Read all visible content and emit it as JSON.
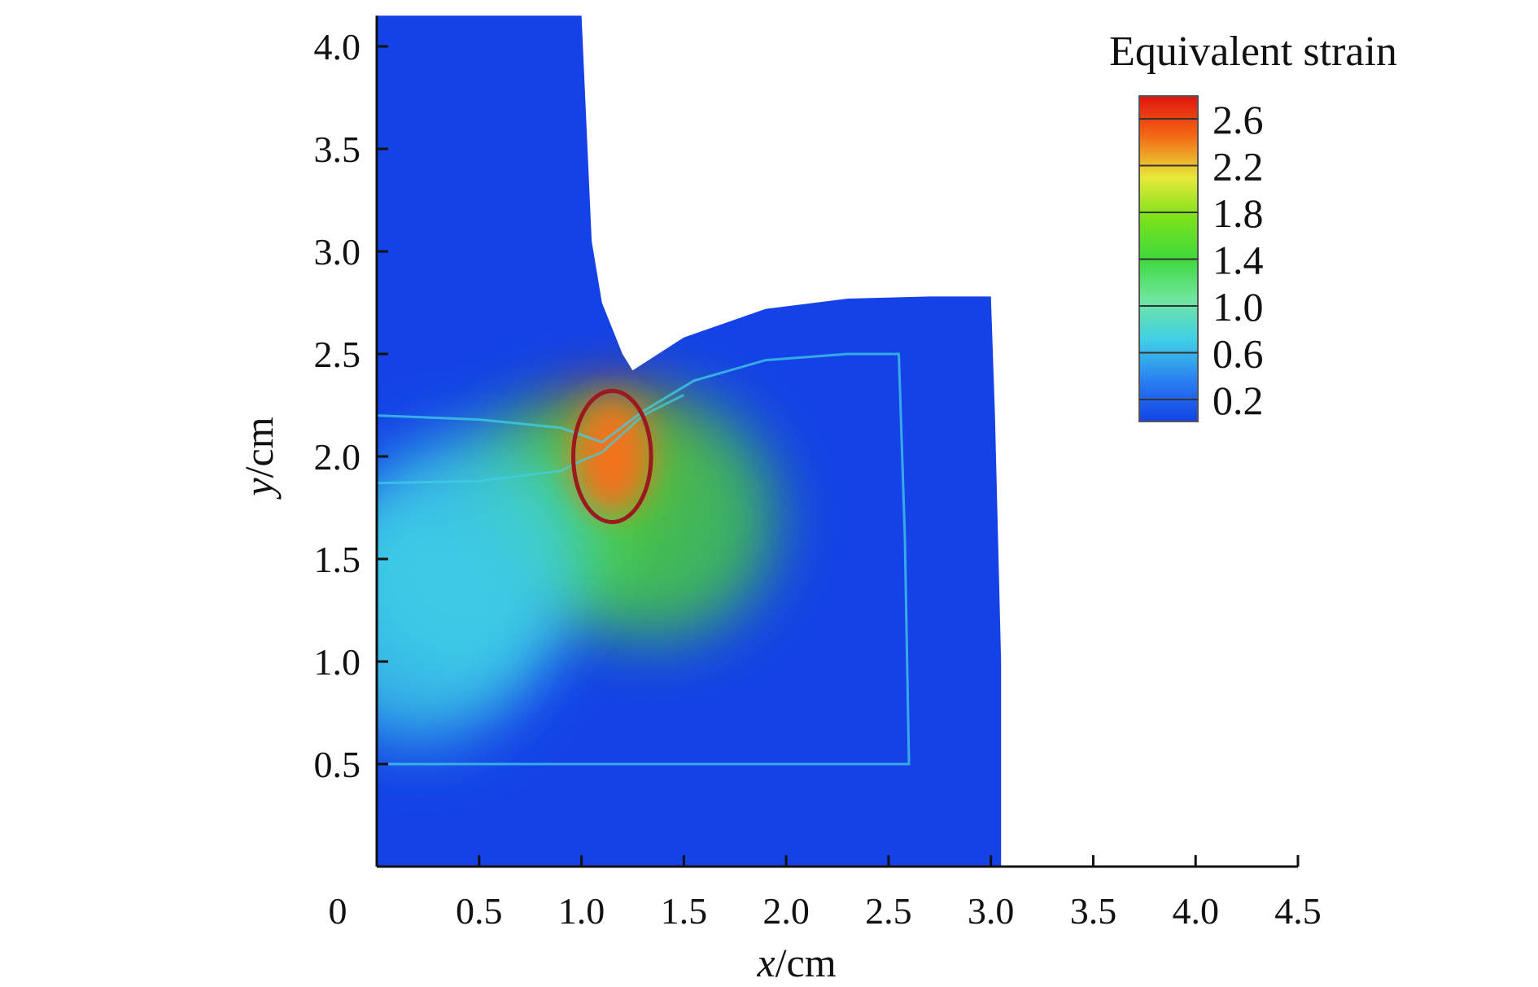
{
  "chart_data": {
    "type": "heatmap",
    "title": "",
    "xlabel": "x/cm",
    "ylabel": "y/cm",
    "xlabel_italic": "x",
    "xlabel_unit": "/cm",
    "ylabel_italic": "y",
    "ylabel_unit": "/cm",
    "xlim": [
      0,
      4.5
    ],
    "ylim": [
      0,
      4.15
    ],
    "xticks": [
      "0",
      "0.5",
      "1.0",
      "1.5",
      "2.0",
      "2.5",
      "3.0",
      "3.5",
      "4.0",
      "4.5"
    ],
    "xtick_values": [
      0,
      0.5,
      1.0,
      1.5,
      2.0,
      2.5,
      3.0,
      3.5,
      4.0,
      4.5
    ],
    "yticks": [
      "0.5",
      "1.0",
      "1.5",
      "2.0",
      "2.5",
      "3.0",
      "3.5",
      "4.0"
    ],
    "ytick_values": [
      0.5,
      1.0,
      1.5,
      2.0,
      2.5,
      3.0,
      3.5,
      4.0
    ],
    "grid": false,
    "colorbar": {
      "title": "Equivalent strain",
      "labels": [
        "2.6",
        "2.2",
        "1.8",
        "1.4",
        "1.0",
        "0.6",
        "0.2"
      ],
      "colors": [
        "#e0140e",
        "#f36a16",
        "#e8e83a",
        "#7ae21a",
        "#3fd83c",
        "#70e6a0",
        "#40cfe6",
        "#2a7ff0",
        "#1442e6"
      ],
      "placement": "top-right"
    },
    "colors": {
      "low": "#1442e6",
      "medium_low": "#40cfe6",
      "medium": "#4ad23c",
      "high": "#f0731c",
      "peak": "#e0140e",
      "highlight_ellipse": "#9a1a20"
    },
    "regions": {
      "punch_outline": [
        [
          0,
          4.15
        ],
        [
          1.0,
          4.15
        ],
        [
          1.05,
          3.05
        ],
        [
          1.1,
          2.75
        ],
        [
          1.2,
          2.5
        ],
        [
          1.25,
          2.42
        ],
        [
          1.5,
          2.58
        ],
        [
          1.9,
          2.72
        ],
        [
          2.3,
          2.77
        ],
        [
          2.7,
          2.78
        ],
        [
          2.95,
          2.78
        ],
        [
          3.0,
          2.78
        ],
        [
          3.02,
          2.2
        ],
        [
          3.05,
          1.0
        ],
        [
          3.05,
          0
        ],
        [
          0,
          0
        ]
      ],
      "inner_interface": [
        [
          0,
          2.2
        ],
        [
          0.5,
          2.18
        ],
        [
          0.9,
          2.14
        ],
        [
          1.1,
          2.07
        ],
        [
          1.3,
          2.22
        ],
        [
          1.55,
          2.37
        ],
        [
          1.9,
          2.47
        ],
        [
          2.3,
          2.5
        ],
        [
          2.55,
          2.5
        ],
        [
          2.58,
          1.6
        ],
        [
          2.6,
          0.5
        ],
        [
          0,
          0.5
        ]
      ],
      "material_boundary": [
        [
          0,
          1.87
        ],
        [
          0.5,
          1.88
        ],
        [
          0.9,
          1.93
        ],
        [
          1.0,
          1.98
        ],
        [
          1.1,
          2.02
        ],
        [
          1.3,
          2.2
        ],
        [
          1.5,
          2.3
        ]
      ],
      "highlight_ellipse": {
        "cx": 1.15,
        "cy": 2.0,
        "rx": 0.19,
        "ry": 0.32
      }
    },
    "hotspots": [
      {
        "x": 1.15,
        "y": 2.0,
        "strain": 2.4
      },
      {
        "x": 0.9,
        "y": 1.78,
        "strain": 1.6
      },
      {
        "x": 1.35,
        "y": 1.7,
        "strain": 1.2
      },
      {
        "x": 0.45,
        "y": 1.5,
        "strain": 0.6
      },
      {
        "x": 0.2,
        "y": 1.2,
        "strain": 0.5
      }
    ]
  }
}
